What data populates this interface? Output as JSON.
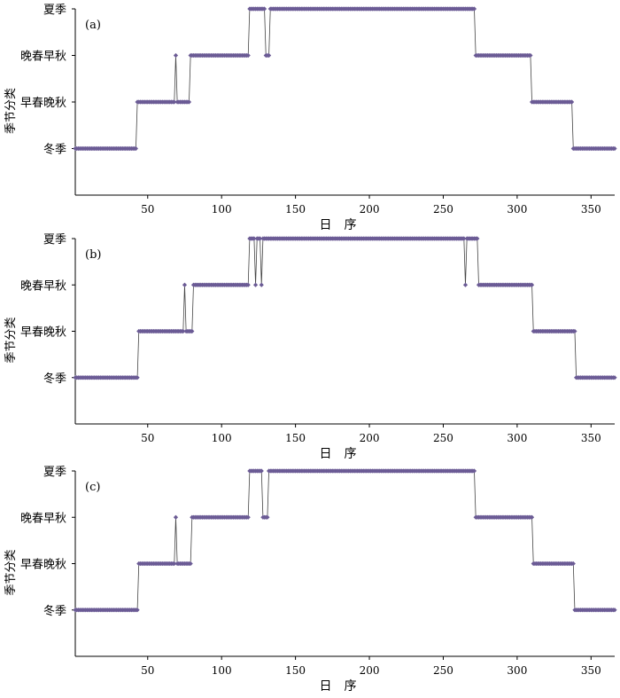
{
  "chart_data": [
    {
      "type": "line",
      "panel_label": "(a)",
      "xlabel": "日　序",
      "ylabel": "季节分类",
      "xlim": [
        1,
        366
      ],
      "ylim": [
        0,
        4
      ],
      "xticks": [
        50,
        100,
        150,
        200,
        250,
        300,
        350
      ],
      "yticks": [
        1,
        2,
        3,
        4
      ],
      "category_labels": [
        "冬季",
        "早春晚秋",
        "晚春早秋",
        "夏季"
      ],
      "marker_color": "#6b5b95",
      "line_color": "#444444",
      "grid": false,
      "segments": [
        [
          1,
          42,
          1
        ],
        [
          43,
          68,
          2
        ],
        [
          69,
          69,
          3
        ],
        [
          70,
          78,
          2
        ],
        [
          79,
          118,
          3
        ],
        [
          119,
          129,
          4
        ],
        [
          130,
          132,
          3
        ],
        [
          133,
          271,
          4
        ],
        [
          272,
          309,
          3
        ],
        [
          310,
          337,
          2
        ],
        [
          338,
          366,
          1
        ]
      ]
    },
    {
      "type": "line",
      "panel_label": "(b)",
      "xlabel": "日　序",
      "ylabel": "季节分类",
      "xlim": [
        1,
        366
      ],
      "ylim": [
        0,
        4
      ],
      "xticks": [
        50,
        100,
        150,
        200,
        250,
        300,
        350
      ],
      "yticks": [
        1,
        2,
        3,
        4
      ],
      "category_labels": [
        "冬季",
        "早春晚秋",
        "晚春早秋",
        "夏季"
      ],
      "marker_color": "#6b5b95",
      "line_color": "#444444",
      "grid": false,
      "segments": [
        [
          1,
          43,
          1
        ],
        [
          44,
          74,
          2
        ],
        [
          75,
          75,
          3
        ],
        [
          76,
          80,
          2
        ],
        [
          81,
          118,
          3
        ],
        [
          119,
          122,
          4
        ],
        [
          123,
          123,
          3
        ],
        [
          124,
          126,
          4
        ],
        [
          127,
          127,
          3
        ],
        [
          128,
          264,
          4
        ],
        [
          265,
          265,
          3
        ],
        [
          266,
          273,
          4
        ],
        [
          274,
          310,
          3
        ],
        [
          311,
          339,
          2
        ],
        [
          340,
          366,
          1
        ]
      ]
    },
    {
      "type": "line",
      "panel_label": "(c)",
      "xlabel": "日　序",
      "ylabel": "季节分类",
      "xlim": [
        1,
        366
      ],
      "ylim": [
        0,
        4
      ],
      "xticks": [
        50,
        100,
        150,
        200,
        250,
        300,
        350
      ],
      "yticks": [
        1,
        2,
        3,
        4
      ],
      "category_labels": [
        "冬季",
        "早春晚秋",
        "晚春早秋",
        "夏季"
      ],
      "marker_color": "#6b5b95",
      "line_color": "#444444",
      "grid": false,
      "segments": [
        [
          1,
          43,
          1
        ],
        [
          44,
          68,
          2
        ],
        [
          69,
          69,
          3
        ],
        [
          70,
          79,
          2
        ],
        [
          80,
          118,
          3
        ],
        [
          119,
          127,
          4
        ],
        [
          128,
          131,
          3
        ],
        [
          132,
          271,
          4
        ],
        [
          272,
          310,
          3
        ],
        [
          311,
          338,
          2
        ],
        [
          339,
          366,
          1
        ]
      ]
    }
  ]
}
